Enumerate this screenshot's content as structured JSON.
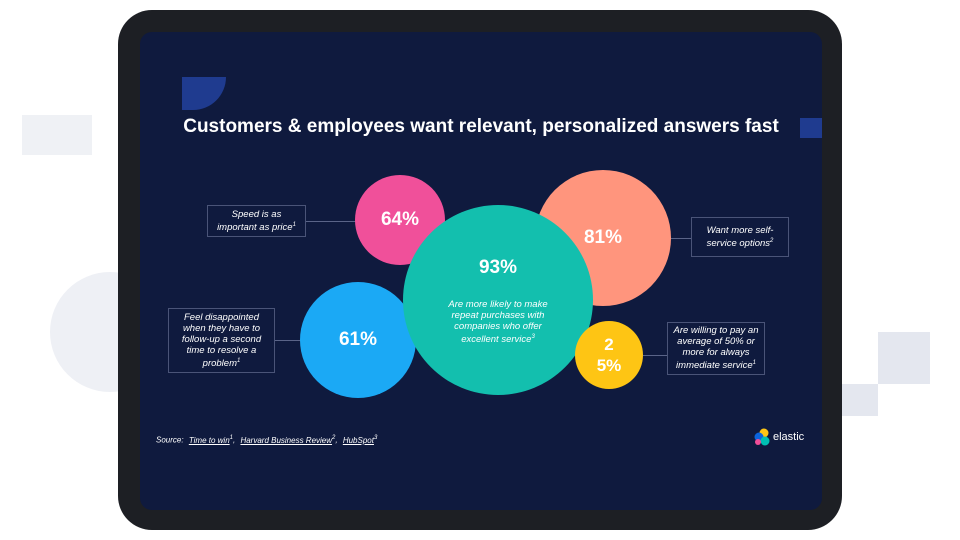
{
  "slide": {
    "title": "Customers & employees want relevant, personalized answers fast",
    "bubbles": [
      {
        "value": "64%",
        "caption": "Speed is as important as price",
        "ref": "1"
      },
      {
        "value": "81%",
        "caption": "Want more self-service options",
        "ref": "2"
      },
      {
        "value": "93%",
        "caption": "Are more likely to make repeat purchases with companies who offer excellent service",
        "ref": "3"
      },
      {
        "value": "61%",
        "caption": "Feel disappointed when they have to follow-up a second time to resolve a problem",
        "ref": "1"
      },
      {
        "value": "25%",
        "caption": "Are willing to pay an average of 50% or more for always immediate service",
        "ref": "1"
      }
    ],
    "source": {
      "prefix": "Source:",
      "links": [
        {
          "text": "Time to win",
          "ref": "1"
        },
        {
          "text": "Harvard Business Review",
          "ref": "2"
        },
        {
          "text": "HubSpot",
          "ref": "3"
        }
      ]
    },
    "logo": "elastic"
  }
}
